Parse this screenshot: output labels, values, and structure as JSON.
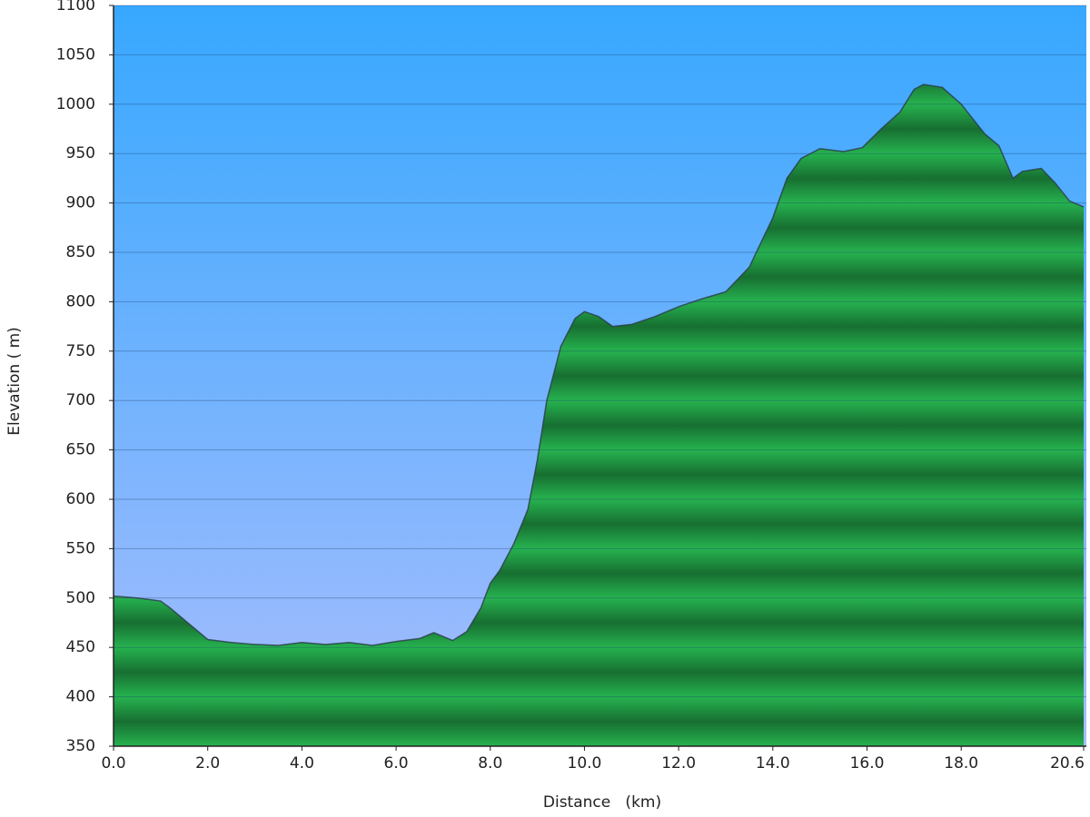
{
  "chart_data": {
    "type": "area",
    "x_label": "Distance   (km)",
    "y_label": "Elevation ( m)",
    "x": [
      0,
      0.5,
      1.0,
      1.2,
      1.5,
      2.0,
      2.5,
      3.0,
      3.5,
      4.0,
      4.5,
      5.0,
      5.5,
      6.0,
      6.5,
      6.8,
      7.2,
      7.5,
      7.8,
      8.0,
      8.2,
      8.5,
      8.8,
      9.0,
      9.2,
      9.5,
      9.8,
      10.0,
      10.3,
      10.6,
      11.0,
      11.5,
      12.0,
      12.5,
      13.0,
      13.5,
      14.0,
      14.3,
      14.6,
      15.0,
      15.5,
      15.9,
      16.3,
      16.7,
      17.0,
      17.2,
      17.6,
      18.0,
      18.5,
      18.8,
      19.1,
      19.3,
      19.7,
      20.0,
      20.3,
      20.6
    ],
    "values": [
      502,
      500,
      497,
      490,
      478,
      458,
      455,
      453,
      452,
      455,
      453,
      455,
      452,
      456,
      459,
      465,
      457,
      466,
      490,
      515,
      528,
      555,
      590,
      640,
      700,
      755,
      783,
      790,
      785,
      775,
      777,
      785,
      795,
      803,
      810,
      835,
      885,
      925,
      945,
      955,
      952,
      956,
      975,
      992,
      1015,
      1020,
      1017,
      1000,
      970,
      958,
      925,
      932,
      935,
      920,
      902,
      896
    ],
    "color": "#22a84a",
    "line_color": "#2a3a4a",
    "xlim": [
      0,
      20.6
    ],
    "ylim": [
      350,
      1100
    ],
    "xticks": [
      {
        "value": 0,
        "label": "0.0"
      },
      {
        "value": 2,
        "label": "2.0"
      },
      {
        "value": 4,
        "label": "4.0"
      },
      {
        "value": 6,
        "label": "6.0"
      },
      {
        "value": 8,
        "label": "8.0"
      },
      {
        "value": 10,
        "label": "10.0"
      },
      {
        "value": 12,
        "label": "12.0"
      },
      {
        "value": 14,
        "label": "14.0"
      },
      {
        "value": 16,
        "label": "16.0"
      },
      {
        "value": 18,
        "label": "18.0"
      },
      20.6
    ],
    "yticks": [
      350,
      400,
      450,
      500,
      550,
      600,
      650,
      700,
      750,
      800,
      850,
      900,
      950,
      1000,
      1050,
      1100
    ],
    "grid": true
  }
}
